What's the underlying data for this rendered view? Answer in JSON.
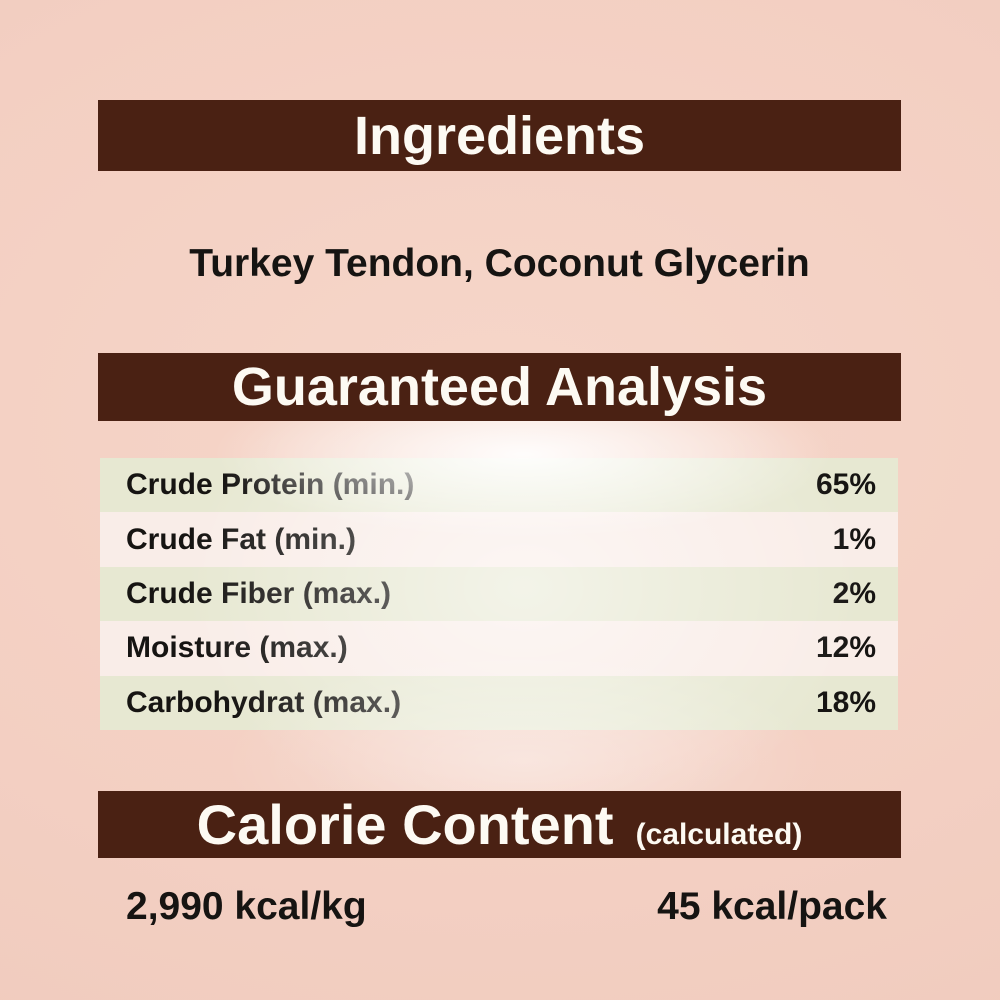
{
  "colors": {
    "background": "#f3d0c3",
    "header_bar": "#4a2113",
    "header_text": "#fdfaf3",
    "row_green": "#e7e8d2",
    "row_light": "#f9ede8",
    "body_text": "#161412"
  },
  "ingredients": {
    "title": "Ingredients",
    "list": "Turkey Tendon, Coconut Glycerin"
  },
  "guaranteed_analysis": {
    "title": "Guaranteed Analysis",
    "rows": [
      {
        "label": "Crude Protein (min.)",
        "value": "65%"
      },
      {
        "label": "Crude Fat (min.)",
        "value": "1%"
      },
      {
        "label": "Crude Fiber (max.)",
        "value": "2%"
      },
      {
        "label": "Moisture (max.)",
        "value": "12%"
      },
      {
        "label": "Carbohydrat (max.)",
        "value": "18%"
      }
    ]
  },
  "calorie_content": {
    "title": "Calorie Content",
    "subtitle": "(calculated)",
    "per_kg": "2,990 kcal/kg",
    "per_pack": "45 kcal/pack"
  }
}
